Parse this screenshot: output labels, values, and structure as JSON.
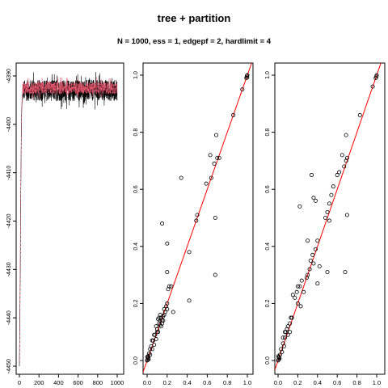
{
  "title": "tree + partition",
  "subtitle": "N = 1000, ess = 1, edgepf = 2, hardlimit = 4",
  "colors": {
    "trace_primary": "#000000",
    "trace_secondary": "#DF536B",
    "identity_line": "#FF0000"
  },
  "chart_data": [
    {
      "type": "line",
      "panel": "trace",
      "xlim": [
        0,
        1000
      ],
      "ylim": [
        -4451,
        -4388
      ],
      "x_ticks": [
        0,
        200,
        400,
        600,
        800,
        1000
      ],
      "x_tick_labels": [
        "0",
        "200",
        "400",
        "600",
        "800",
        "1000"
      ],
      "y_ticks": [
        -4390,
        -4400,
        -4410,
        -4420,
        -4430,
        -4440,
        -4450
      ],
      "y_tick_labels": [
        "-4390",
        "-4400",
        "-4410",
        "-4420",
        "-4430",
        "-4440",
        "-4450"
      ],
      "series": [
        {
          "color": "#000000",
          "style": "solid",
          "burnin": [
            [
              0,
              -4450
            ],
            [
              3,
              -4444
            ],
            [
              6,
              -4437
            ],
            [
              9,
              -4430
            ],
            [
              12,
              -4420
            ],
            [
              15,
              -4412
            ],
            [
              18,
              -4405
            ],
            [
              22,
              -4398
            ],
            [
              27,
              -4395
            ],
            [
              35,
              -4393
            ]
          ],
          "plateau_level": -4393,
          "plateau_spread": 2.2,
          "x_end": 1000
        },
        {
          "color": "#DF536B",
          "style": "dashed",
          "burnin": [
            [
              0,
              -4449
            ],
            [
              4,
              -4440
            ],
            [
              8,
              -4428
            ],
            [
              12,
              -4418
            ],
            [
              16,
              -4409
            ],
            [
              20,
              -4402
            ],
            [
              25,
              -4397
            ],
            [
              32,
              -4394
            ]
          ],
          "plateau_level": -4392.5,
          "plateau_spread": 1.3,
          "x_end": 1000
        }
      ]
    },
    {
      "type": "scatter",
      "panel": "pairwise-1",
      "xlim": [
        0,
        1
      ],
      "ylim": [
        0,
        1
      ],
      "ticks": [
        0,
        0.2,
        0.4,
        0.6,
        0.8,
        1
      ],
      "x_tick_labels": [
        "0.0",
        "0.2",
        "0.4",
        "0.6",
        "0.8",
        "1.0"
      ],
      "y_tick_labels": [
        "0.0",
        "0.2",
        "0.4",
        "0.6",
        "0.8",
        "1.0"
      ],
      "reference_line": {
        "from": [
          0,
          0
        ],
        "to": [
          1,
          1
        ],
        "color": "#FF0000"
      },
      "points": [
        [
          0,
          0
        ],
        [
          0.005,
          0.002
        ],
        [
          0.01,
          0.008
        ],
        [
          0.002,
          0.012
        ],
        [
          0.015,
          0.004
        ],
        [
          0.008,
          0.015
        ],
        [
          0.012,
          0.01
        ],
        [
          0.02,
          0.025
        ],
        [
          0.03,
          0.02
        ],
        [
          0.04,
          0.05
        ],
        [
          0.05,
          0.04
        ],
        [
          0.06,
          0.07
        ],
        [
          0.07,
          0.055
        ],
        [
          0.08,
          0.09
        ],
        [
          0.09,
          0.075
        ],
        [
          0.1,
          0.11
        ],
        [
          0.11,
          0.1
        ],
        [
          0.12,
          0.13
        ],
        [
          0.13,
          0.14
        ],
        [
          0.13,
          0.125
        ],
        [
          0.14,
          0.15
        ],
        [
          0.15,
          0.14
        ],
        [
          0.16,
          0.155
        ],
        [
          0.17,
          0.16
        ],
        [
          0.18,
          0.17
        ],
        [
          0.19,
          0.19
        ],
        [
          0.2,
          0.18
        ],
        [
          0.12,
          0.15
        ],
        [
          0.14,
          0.12
        ],
        [
          0.11,
          0.145
        ],
        [
          0.15,
          0.13
        ],
        [
          0.1,
          0.1
        ],
        [
          0.09,
          0.12
        ],
        [
          0.13,
          0.16
        ],
        [
          0.16,
          0.14
        ],
        [
          0.05,
          0.07
        ],
        [
          0.07,
          0.09
        ],
        [
          0.03,
          0.04
        ],
        [
          0.17,
          0.18
        ],
        [
          0.2,
          0.2
        ],
        [
          0.21,
          0.25
        ],
        [
          0.22,
          0.26
        ],
        [
          0.24,
          0.26
        ],
        [
          0.2,
          0.31
        ],
        [
          0.26,
          0.17
        ],
        [
          0.2,
          0.41
        ],
        [
          0.15,
          0.48
        ],
        [
          0.42,
          0.21
        ],
        [
          0.42,
          0.38
        ],
        [
          0.34,
          0.64
        ],
        [
          0.49,
          0.49
        ],
        [
          0.5,
          0.51
        ],
        [
          0.59,
          0.62
        ],
        [
          0.64,
          0.64
        ],
        [
          0.63,
          0.72
        ],
        [
          0.67,
          0.69
        ],
        [
          0.7,
          0.71
        ],
        [
          0.72,
          0.71
        ],
        [
          0.69,
          0.79
        ],
        [
          0.68,
          0.5
        ],
        [
          0.68,
          0.3
        ],
        [
          0.86,
          0.86
        ],
        [
          0.95,
          0.95
        ],
        [
          0.99,
          0.99
        ],
        [
          1,
          1
        ],
        [
          0.995,
          0.998
        ],
        [
          0.998,
          0.992
        ]
      ]
    },
    {
      "type": "scatter",
      "panel": "pairwise-2",
      "xlim": [
        0,
        1
      ],
      "ylim": [
        0,
        1
      ],
      "ticks": [
        0,
        0.2,
        0.4,
        0.6,
        0.8,
        1
      ],
      "x_tick_labels": [
        "0.0",
        "0.2",
        "0.4",
        "0.6",
        "0.8",
        "1.0"
      ],
      "y_tick_labels": [
        "0.0",
        "0.2",
        "0.4",
        "0.6",
        "0.8",
        "1.0"
      ],
      "reference_line": {
        "from": [
          0,
          0
        ],
        "to": [
          1,
          1
        ],
        "color": "#FF0000"
      },
      "points": [
        [
          0,
          0
        ],
        [
          0.005,
          0.003
        ],
        [
          0.01,
          0.01
        ],
        [
          0.003,
          0.015
        ],
        [
          0.015,
          0.006
        ],
        [
          0.008,
          0.012
        ],
        [
          0.02,
          0.02
        ],
        [
          0.03,
          0.04
        ],
        [
          0.04,
          0.03
        ],
        [
          0.05,
          0.06
        ],
        [
          0.06,
          0.05
        ],
        [
          0.07,
          0.08
        ],
        [
          0.08,
          0.1
        ],
        [
          0.09,
          0.11
        ],
        [
          0.1,
          0.09
        ],
        [
          0.1,
          0.12
        ],
        [
          0.12,
          0.13
        ],
        [
          0.13,
          0.15
        ],
        [
          0.14,
          0.15
        ],
        [
          0.12,
          0.1
        ],
        [
          0.05,
          0.08
        ],
        [
          0.07,
          0.1
        ],
        [
          0.15,
          0.23
        ],
        [
          0.17,
          0.22
        ],
        [
          0.19,
          0.24
        ],
        [
          0.2,
          0.26
        ],
        [
          0.22,
          0.26
        ],
        [
          0.24,
          0.28
        ],
        [
          0.2,
          0.2
        ],
        [
          0.23,
          0.19
        ],
        [
          0.26,
          0.24
        ],
        [
          0.29,
          0.29
        ],
        [
          0.3,
          0.3
        ],
        [
          0.32,
          0.32
        ],
        [
          0.33,
          0.35
        ],
        [
          0.35,
          0.37
        ],
        [
          0.38,
          0.39
        ],
        [
          0.36,
          0.34
        ],
        [
          0.3,
          0.42
        ],
        [
          0.34,
          0.65
        ],
        [
          0.36,
          0.57
        ],
        [
          0.38,
          0.56
        ],
        [
          0.22,
          0.54
        ],
        [
          0.4,
          0.42
        ],
        [
          0.42,
          0.33
        ],
        [
          0.4,
          0.27
        ],
        [
          0.48,
          0.5
        ],
        [
          0.5,
          0.52
        ],
        [
          0.52,
          0.55
        ],
        [
          0.54,
          0.58
        ],
        [
          0.56,
          0.61
        ],
        [
          0.52,
          0.49
        ],
        [
          0.5,
          0.31
        ],
        [
          0.6,
          0.65
        ],
        [
          0.62,
          0.66
        ],
        [
          0.65,
          0.72
        ],
        [
          0.67,
          0.68
        ],
        [
          0.69,
          0.7
        ],
        [
          0.7,
          0.71
        ],
        [
          0.69,
          0.79
        ],
        [
          0.7,
          0.51
        ],
        [
          0.68,
          0.31
        ],
        [
          0.83,
          0.86
        ],
        [
          0.96,
          0.96
        ],
        [
          0.99,
          0.99
        ],
        [
          1,
          1
        ],
        [
          0.997,
          0.995
        ]
      ]
    }
  ]
}
